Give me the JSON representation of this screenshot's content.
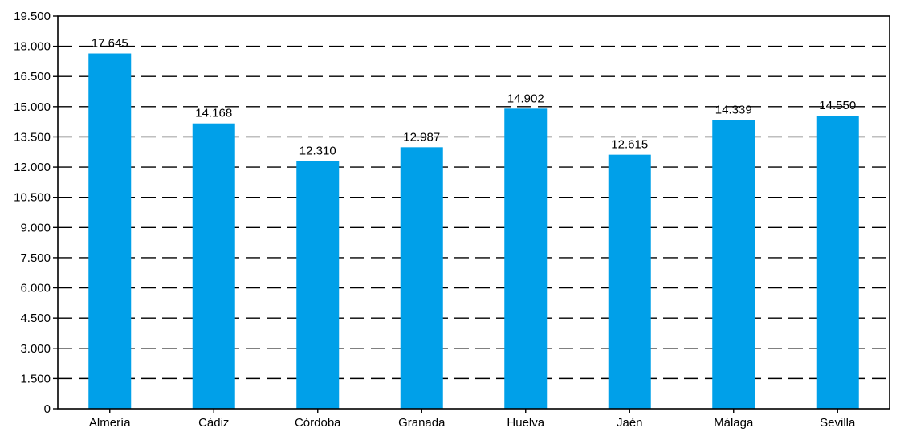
{
  "chart_data": {
    "type": "bar",
    "title": "",
    "xlabel": "",
    "ylabel": "",
    "categories": [
      "Almería",
      "Cádiz",
      "Córdoba",
      "Granada",
      "Huelva",
      "Jaén",
      "Málaga",
      "Sevilla"
    ],
    "values": [
      17645,
      14168,
      12310,
      12987,
      14902,
      12615,
      14339,
      14550
    ],
    "value_labels": [
      "17.645",
      "14.168",
      "12.310",
      "12.987",
      "14.902",
      "12.615",
      "14.339",
      "14.550"
    ],
    "ylim": [
      0,
      19500
    ],
    "y_ticks": [
      0,
      1500,
      3000,
      4500,
      6000,
      7500,
      9000,
      10500,
      12000,
      13500,
      15000,
      16500,
      18000,
      19500
    ],
    "y_tick_labels": [
      "0",
      "1.500",
      "3.000",
      "4.500",
      "6.000",
      "7.500",
      "9.000",
      "10.500",
      "12.000",
      "13.500",
      "15.000",
      "16.500",
      "18.000",
      "19.500"
    ],
    "grid": "horizontal dashed",
    "legend": "none",
    "bar_color": "#00A0E9",
    "axis_color": "#000000"
  }
}
